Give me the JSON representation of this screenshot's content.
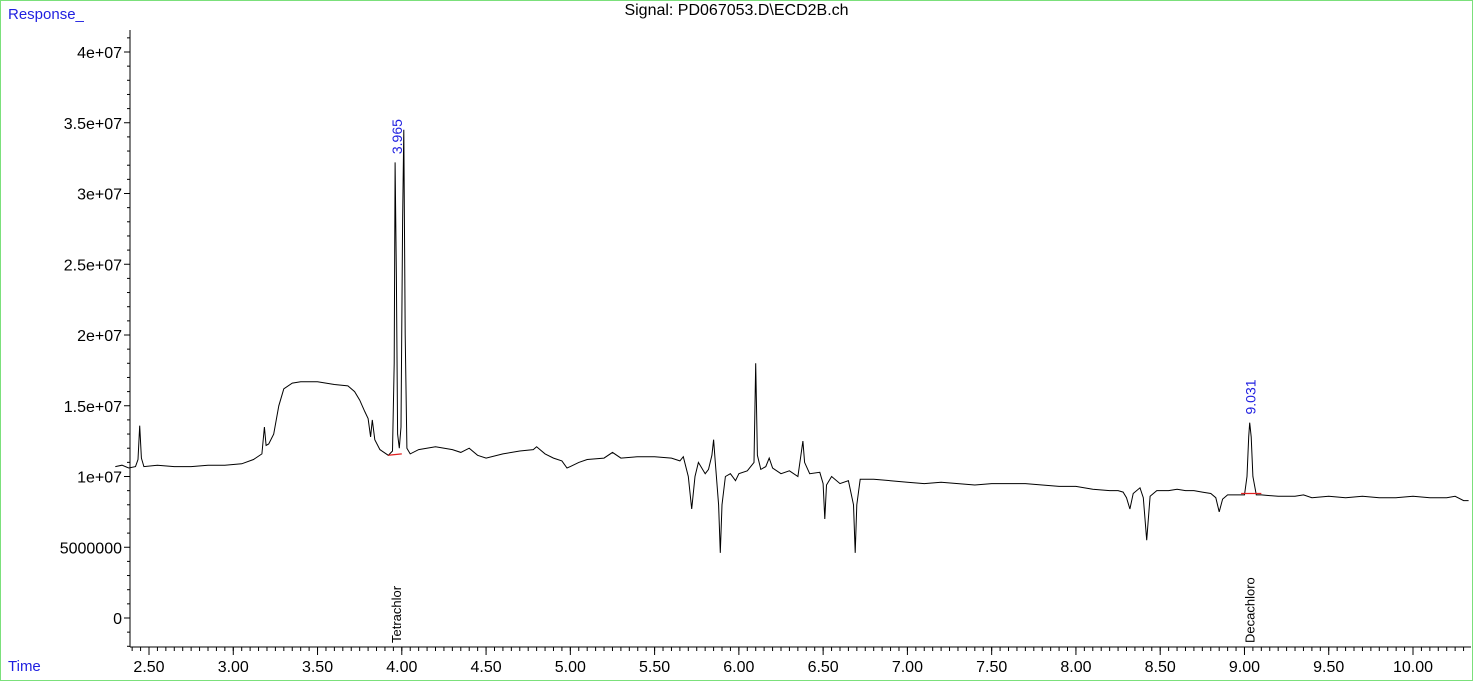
{
  "chart_data": {
    "type": "line",
    "title": "Signal: PD067053.D\\ECD2B.ch",
    "ylabel": "Response_",
    "xlabel": "Time",
    "xlim": [
      2.3,
      10.33
    ],
    "ylim": [
      -700000,
      41500000
    ],
    "x_ticks": [
      "2.50",
      "3.00",
      "3.50",
      "4.00",
      "4.50",
      "5.00",
      "5.50",
      "6.00",
      "6.50",
      "7.00",
      "7.50",
      "8.00",
      "8.50",
      "9.00",
      "9.50",
      "10.00"
    ],
    "y_ticks": [
      "0",
      "5000000",
      "1e+07",
      "1.5e+07",
      "2e+07",
      "2.5e+07",
      "3e+07",
      "3.5e+07",
      "4e+07"
    ],
    "line_color": "#000000",
    "peak_label_color": "#1f1fe0",
    "baseline_color": "#e02020",
    "peak_labels": [
      {
        "x": 3.965,
        "y": 32500000,
        "text": "3.965"
      },
      {
        "x": 9.031,
        "y": 14100000,
        "text": "9.031"
      }
    ],
    "compound_labels": [
      {
        "x": 3.965,
        "text": "Tetrachlor"
      },
      {
        "x": 9.031,
        "text": "Decachloro"
      }
    ],
    "baselines": [
      {
        "x": [
          3.92,
          4.0
        ],
        "y": [
          11500000,
          11600000
        ]
      },
      {
        "x": [
          8.98,
          9.1
        ],
        "y": [
          8800000,
          8800000
        ]
      }
    ],
    "trace": [
      [
        2.3,
        10700000
      ],
      [
        2.34,
        10800000
      ],
      [
        2.38,
        10600000
      ],
      [
        2.42,
        10700000
      ],
      [
        2.435,
        11200000
      ],
      [
        2.445,
        13600000
      ],
      [
        2.455,
        11300000
      ],
      [
        2.47,
        10700000
      ],
      [
        2.55,
        10800000
      ],
      [
        2.65,
        10700000
      ],
      [
        2.75,
        10700000
      ],
      [
        2.85,
        10800000
      ],
      [
        2.95,
        10800000
      ],
      [
        3.05,
        10900000
      ],
      [
        3.12,
        11200000
      ],
      [
        3.17,
        11600000
      ],
      [
        3.185,
        13500000
      ],
      [
        3.195,
        12200000
      ],
      [
        3.21,
        12300000
      ],
      [
        3.24,
        13000000
      ],
      [
        3.27,
        15000000
      ],
      [
        3.3,
        16200000
      ],
      [
        3.35,
        16600000
      ],
      [
        3.4,
        16700000
      ],
      [
        3.5,
        16700000
      ],
      [
        3.6,
        16500000
      ],
      [
        3.68,
        16400000
      ],
      [
        3.72,
        16000000
      ],
      [
        3.75,
        15400000
      ],
      [
        3.78,
        14600000
      ],
      [
        3.8,
        14100000
      ],
      [
        3.815,
        12800000
      ],
      [
        3.825,
        14000000
      ],
      [
        3.84,
        12600000
      ],
      [
        3.87,
        11900000
      ],
      [
        3.92,
        11500000
      ],
      [
        3.945,
        11800000
      ],
      [
        3.955,
        18000000
      ],
      [
        3.96,
        32200000
      ],
      [
        3.968,
        24000000
      ],
      [
        3.975,
        13000000
      ],
      [
        3.985,
        12000000
      ],
      [
        3.995,
        13500000
      ],
      [
        4.005,
        28000000
      ],
      [
        4.012,
        34500000
      ],
      [
        4.02,
        20000000
      ],
      [
        4.03,
        12000000
      ],
      [
        4.05,
        11600000
      ],
      [
        4.1,
        11900000
      ],
      [
        4.2,
        12100000
      ],
      [
        4.3,
        11900000
      ],
      [
        4.35,
        11700000
      ],
      [
        4.4,
        12000000
      ],
      [
        4.45,
        11500000
      ],
      [
        4.5,
        11300000
      ],
      [
        4.6,
        11600000
      ],
      [
        4.7,
        11800000
      ],
      [
        4.78,
        11900000
      ],
      [
        4.8,
        12100000
      ],
      [
        4.85,
        11600000
      ],
      [
        4.9,
        11300000
      ],
      [
        4.95,
        11100000
      ],
      [
        4.98,
        10600000
      ],
      [
        5.0,
        10700000
      ],
      [
        5.05,
        11000000
      ],
      [
        5.1,
        11200000
      ],
      [
        5.2,
        11300000
      ],
      [
        5.25,
        11700000
      ],
      [
        5.3,
        11300000
      ],
      [
        5.4,
        11400000
      ],
      [
        5.5,
        11400000
      ],
      [
        5.6,
        11300000
      ],
      [
        5.65,
        11100000
      ],
      [
        5.67,
        11400000
      ],
      [
        5.7,
        10000000
      ],
      [
        5.72,
        7700000
      ],
      [
        5.74,
        10000000
      ],
      [
        5.76,
        11000000
      ],
      [
        5.8,
        10200000
      ],
      [
        5.82,
        10500000
      ],
      [
        5.84,
        11500000
      ],
      [
        5.85,
        12600000
      ],
      [
        5.86,
        11000000
      ],
      [
        5.88,
        8000000
      ],
      [
        5.89,
        4600000
      ],
      [
        5.9,
        8000000
      ],
      [
        5.92,
        10000000
      ],
      [
        5.95,
        10200000
      ],
      [
        5.98,
        9700000
      ],
      [
        6.0,
        10200000
      ],
      [
        6.05,
        10400000
      ],
      [
        6.09,
        11000000
      ],
      [
        6.1,
        18000000
      ],
      [
        6.11,
        11500000
      ],
      [
        6.13,
        10500000
      ],
      [
        6.16,
        10700000
      ],
      [
        6.18,
        11300000
      ],
      [
        6.2,
        10600000
      ],
      [
        6.25,
        10200000
      ],
      [
        6.3,
        10400000
      ],
      [
        6.35,
        10000000
      ],
      [
        6.38,
        12500000
      ],
      [
        6.39,
        11000000
      ],
      [
        6.42,
        10200000
      ],
      [
        6.48,
        10300000
      ],
      [
        6.5,
        9500000
      ],
      [
        6.51,
        7000000
      ],
      [
        6.52,
        9400000
      ],
      [
        6.55,
        10000000
      ],
      [
        6.6,
        9500000
      ],
      [
        6.65,
        9700000
      ],
      [
        6.68,
        8000000
      ],
      [
        6.69,
        4600000
      ],
      [
        6.7,
        8000000
      ],
      [
        6.72,
        9800000
      ],
      [
        6.8,
        9800000
      ],
      [
        6.9,
        9700000
      ],
      [
        7.0,
        9600000
      ],
      [
        7.1,
        9500000
      ],
      [
        7.2,
        9600000
      ],
      [
        7.3,
        9500000
      ],
      [
        7.4,
        9400000
      ],
      [
        7.5,
        9500000
      ],
      [
        7.6,
        9500000
      ],
      [
        7.7,
        9500000
      ],
      [
        7.8,
        9400000
      ],
      [
        7.9,
        9300000
      ],
      [
        8.0,
        9300000
      ],
      [
        8.1,
        9100000
      ],
      [
        8.2,
        9000000
      ],
      [
        8.25,
        9000000
      ],
      [
        8.28,
        8900000
      ],
      [
        8.3,
        8500000
      ],
      [
        8.32,
        7700000
      ],
      [
        8.34,
        8800000
      ],
      [
        8.38,
        9200000
      ],
      [
        8.4,
        8500000
      ],
      [
        8.42,
        5500000
      ],
      [
        8.44,
        8600000
      ],
      [
        8.48,
        9000000
      ],
      [
        8.55,
        9000000
      ],
      [
        8.6,
        9100000
      ],
      [
        8.65,
        9000000
      ],
      [
        8.7,
        9000000
      ],
      [
        8.75,
        8900000
      ],
      [
        8.8,
        8800000
      ],
      [
        8.83,
        8500000
      ],
      [
        8.85,
        7500000
      ],
      [
        8.87,
        8400000
      ],
      [
        8.9,
        8700000
      ],
      [
        8.95,
        8700000
      ],
      [
        9.0,
        8700000
      ],
      [
        9.015,
        10000000
      ],
      [
        9.025,
        12800000
      ],
      [
        9.031,
        13800000
      ],
      [
        9.04,
        12800000
      ],
      [
        9.05,
        10000000
      ],
      [
        9.07,
        8700000
      ],
      [
        9.1,
        8700000
      ],
      [
        9.2,
        8600000
      ],
      [
        9.3,
        8600000
      ],
      [
        9.35,
        8700000
      ],
      [
        9.4,
        8500000
      ],
      [
        9.5,
        8600000
      ],
      [
        9.6,
        8500000
      ],
      [
        9.7,
        8600000
      ],
      [
        9.8,
        8500000
      ],
      [
        9.9,
        8500000
      ],
      [
        10.0,
        8600000
      ],
      [
        10.1,
        8500000
      ],
      [
        10.2,
        8500000
      ],
      [
        10.25,
        8600000
      ],
      [
        10.3,
        8300000
      ],
      [
        10.33,
        8300000
      ]
    ]
  }
}
